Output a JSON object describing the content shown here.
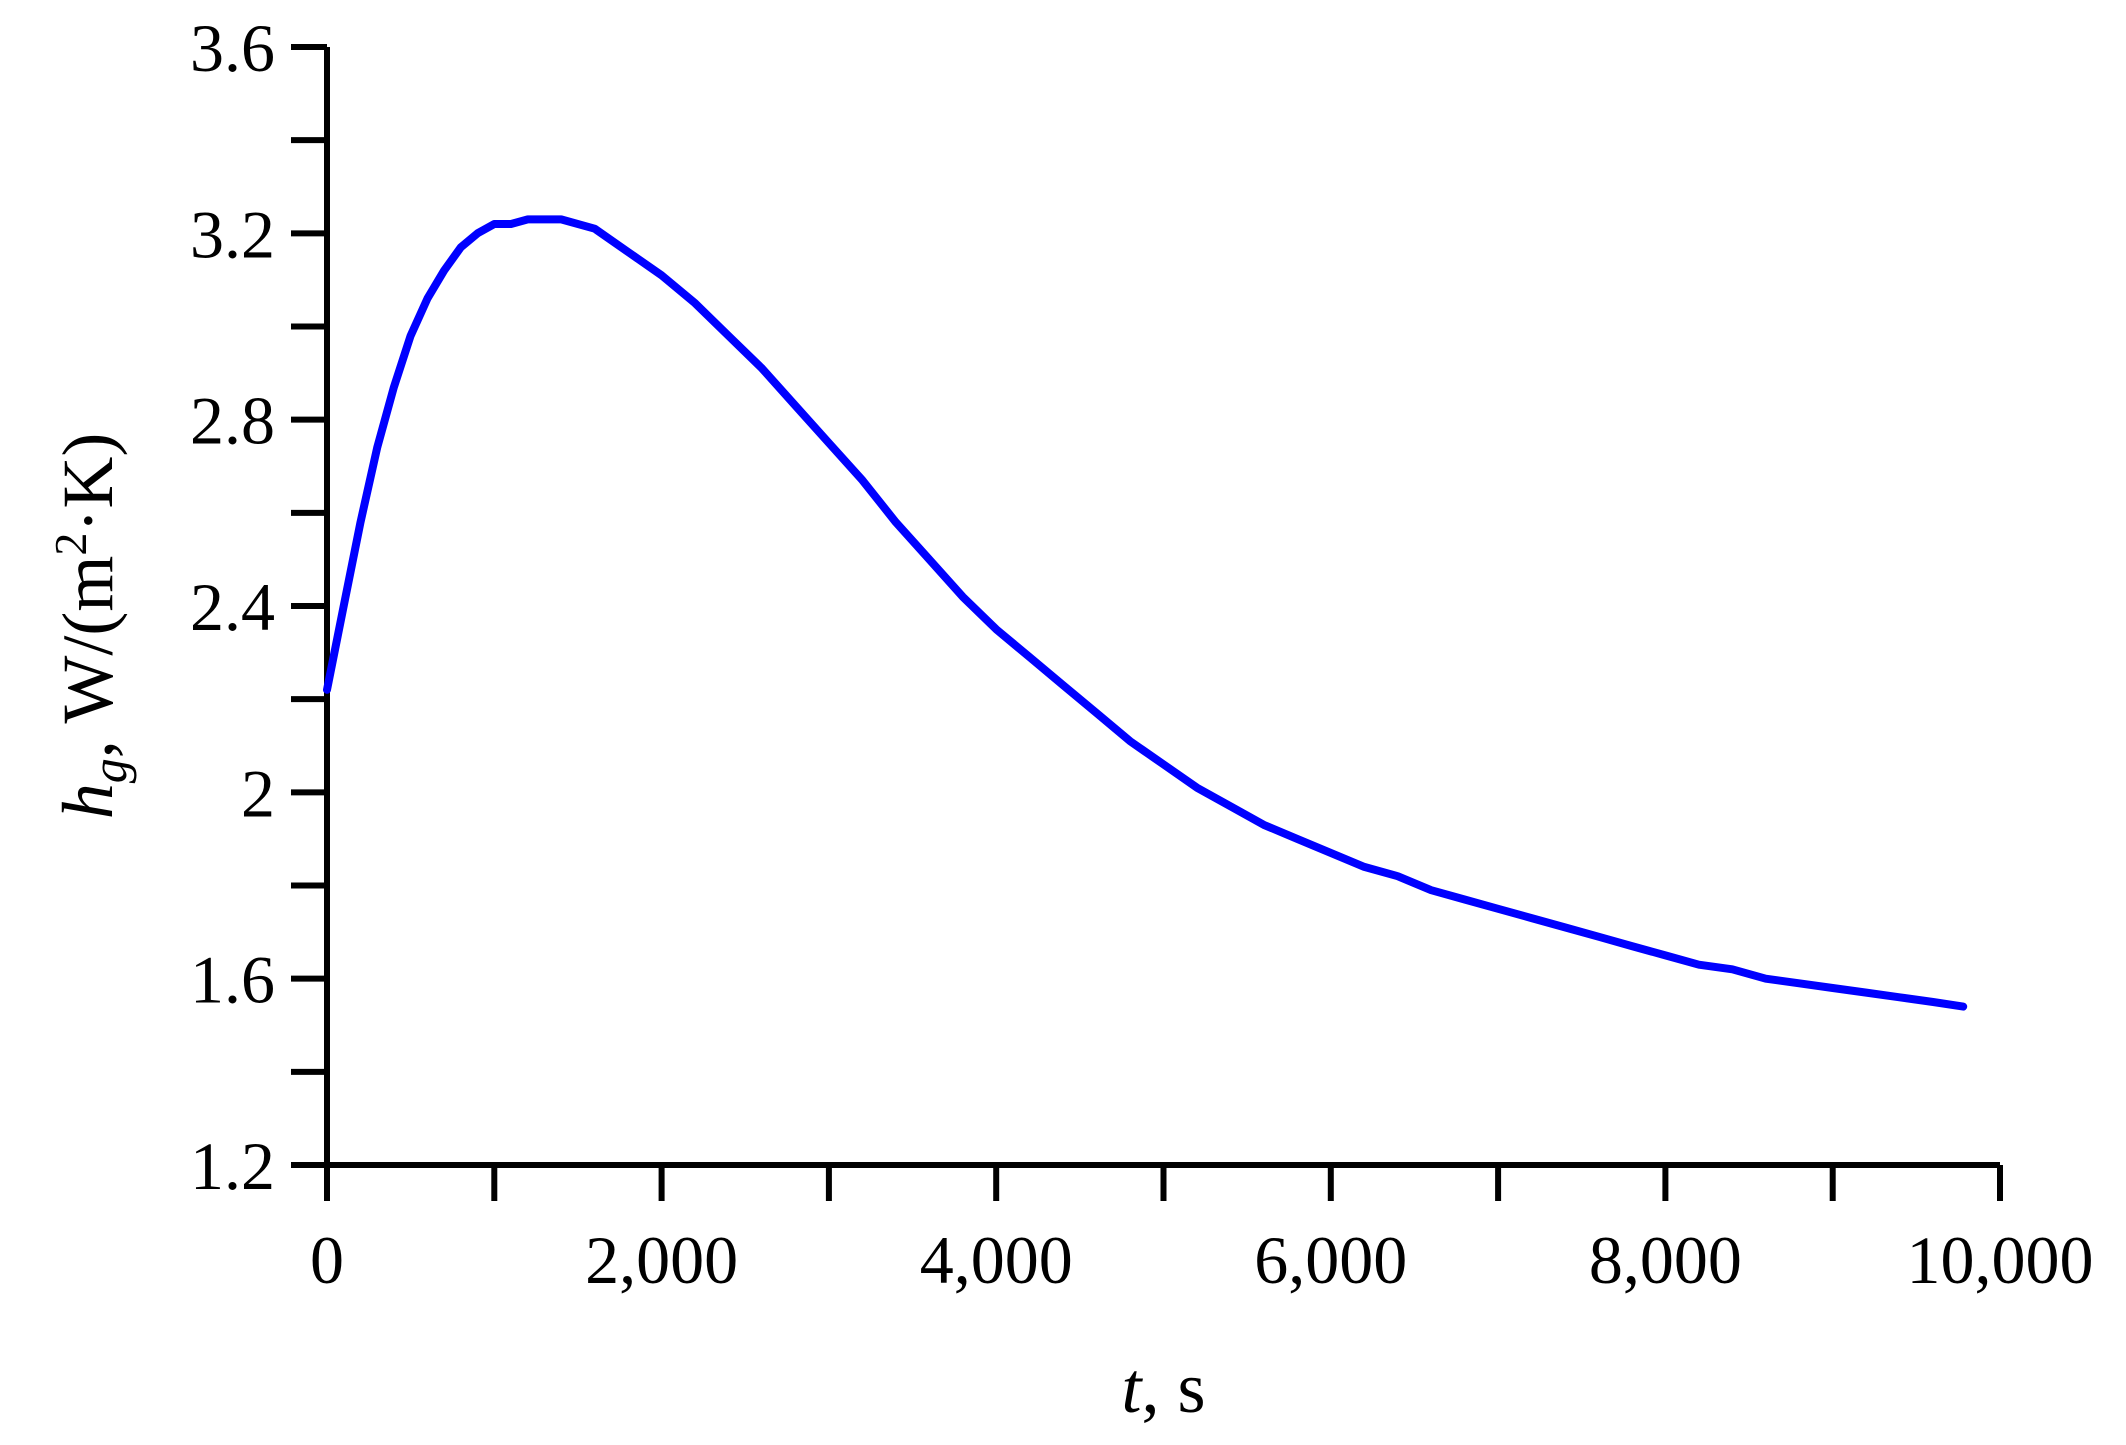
{
  "chart_data": {
    "type": "line",
    "x_label": {
      "var": "t",
      "rest": ", s"
    },
    "y_label": {
      "var": "h",
      "sub": "g",
      "comma": ",",
      "unit_pre": " W/(m",
      "sup": "2",
      "unit_post": "·K)"
    },
    "x_range": [
      0,
      10000
    ],
    "y_range": [
      1.2,
      3.6
    ],
    "x_ticks": [
      0,
      2000,
      4000,
      6000,
      8000,
      10000
    ],
    "x_tick_labels": [
      "0",
      "2,000",
      "4,000",
      "6,000",
      "8,000",
      "10,000"
    ],
    "y_ticks": [
      1.2,
      1.6,
      2.0,
      2.4,
      2.8,
      3.2,
      3.6
    ],
    "y_tick_labels": [
      "1.2",
      "1.6",
      "2",
      "2.4",
      "2.8",
      "3.2",
      "3.6"
    ],
    "x_minor_step": 1000,
    "y_minor_step": 0.2,
    "grid": false,
    "series": [
      {
        "color": "#0000ff",
        "x": [
          0,
          100,
          200,
          300,
          400,
          500,
          600,
          700,
          800,
          900,
          1000,
          1100,
          1200,
          1300,
          1400,
          1600,
          1800,
          2000,
          2200,
          2400,
          2600,
          2800,
          3000,
          3200,
          3400,
          3600,
          3800,
          4000,
          4200,
          4400,
          4600,
          4800,
          5000,
          5200,
          5400,
          5600,
          5800,
          6000,
          6200,
          6400,
          6600,
          6800,
          7000,
          7200,
          7400,
          7600,
          7800,
          8000,
          8200,
          8400,
          8600,
          8800,
          9000,
          9200,
          9400,
          9600,
          9780
        ],
        "y": [
          2.22,
          2.4,
          2.58,
          2.74,
          2.87,
          2.98,
          3.06,
          3.12,
          3.17,
          3.2,
          3.22,
          3.22,
          3.23,
          3.23,
          3.23,
          3.21,
          3.16,
          3.11,
          3.05,
          2.98,
          2.91,
          2.83,
          2.75,
          2.67,
          2.58,
          2.5,
          2.42,
          2.35,
          2.29,
          2.23,
          2.17,
          2.11,
          2.06,
          2.01,
          1.97,
          1.93,
          1.9,
          1.87,
          1.84,
          1.82,
          1.79,
          1.77,
          1.75,
          1.73,
          1.71,
          1.69,
          1.67,
          1.65,
          1.63,
          1.62,
          1.6,
          1.59,
          1.58,
          1.57,
          1.56,
          1.55,
          1.54
        ]
      }
    ]
  }
}
